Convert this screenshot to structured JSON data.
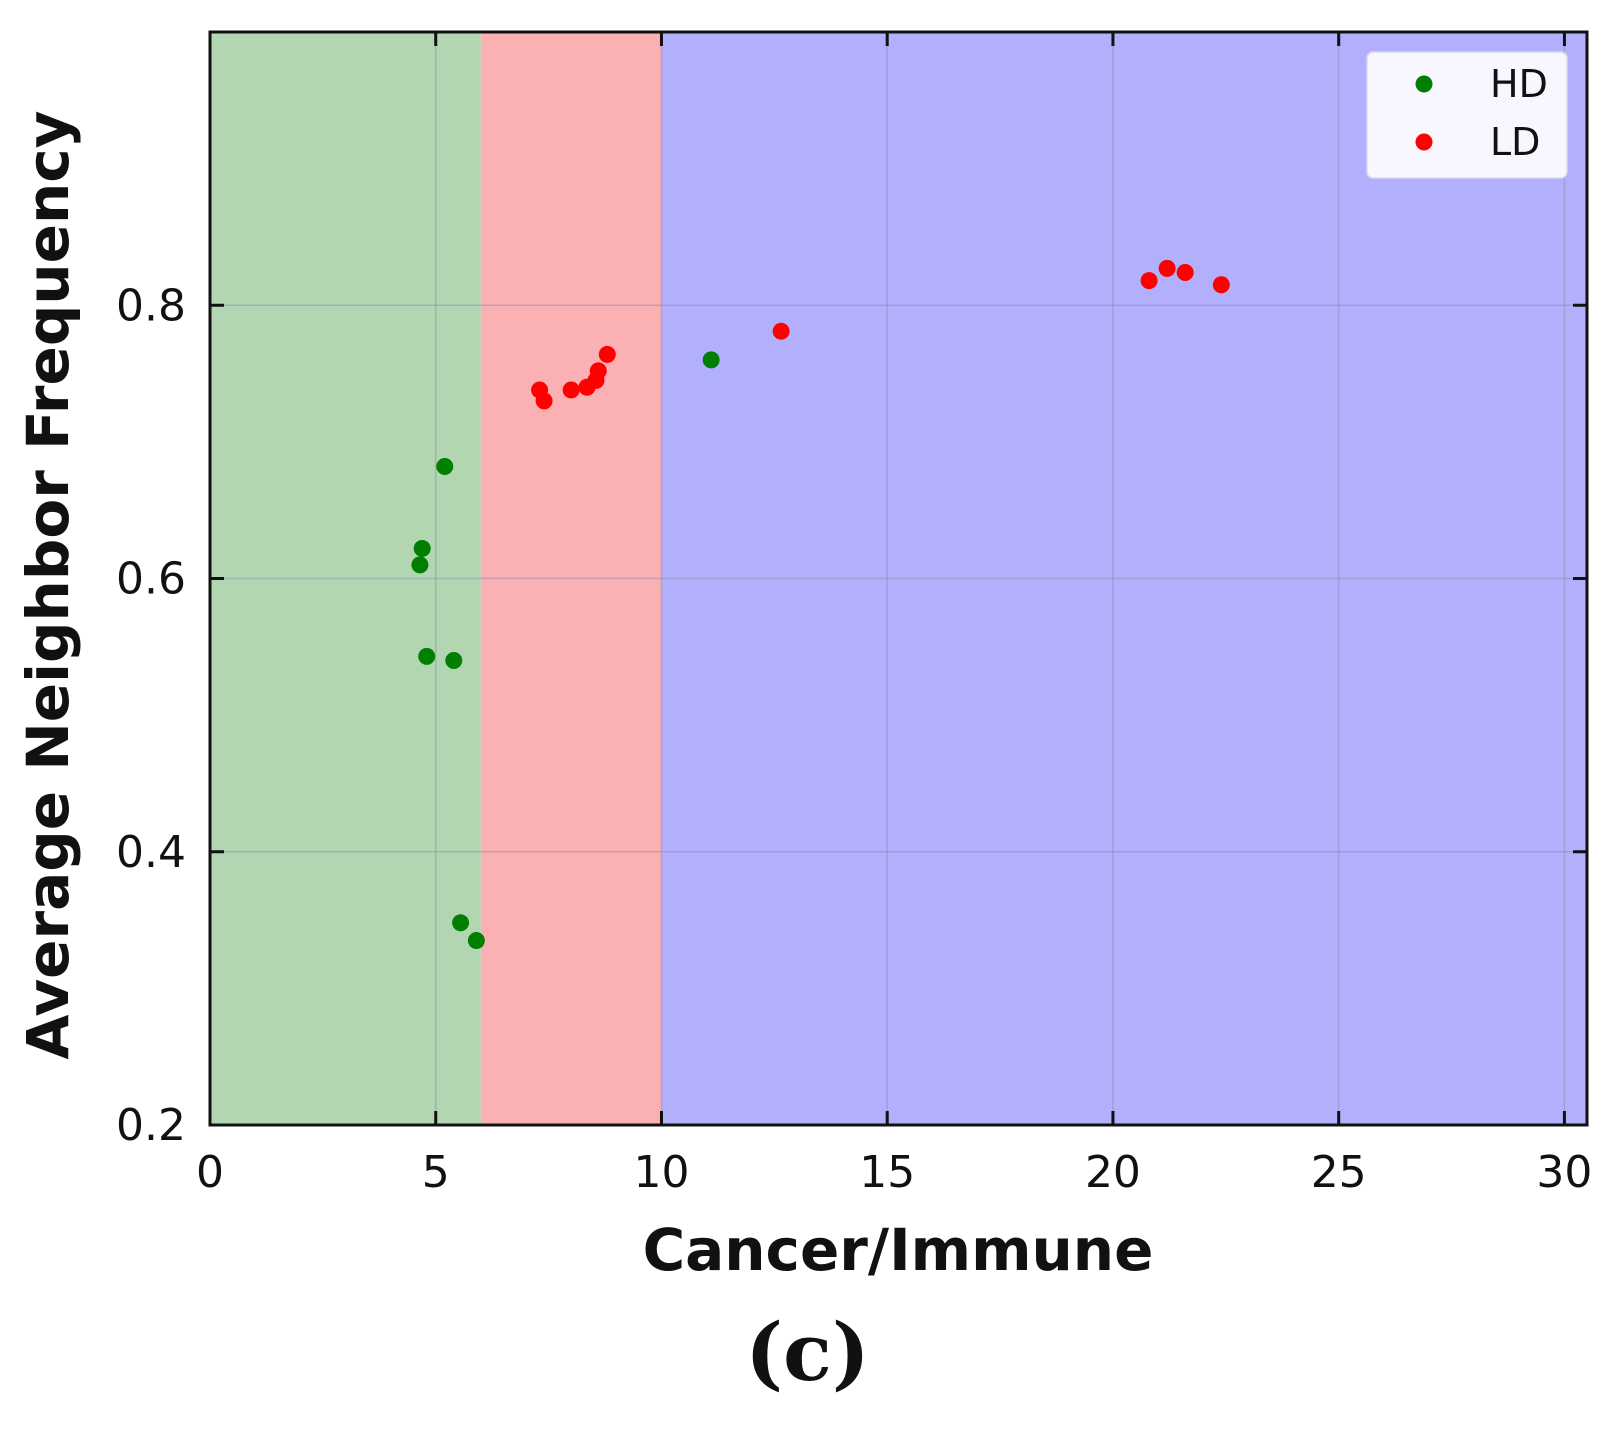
{
  "chart_data": {
    "type": "scatter",
    "title": "",
    "xlabel": "Cancer/Immune",
    "ylabel": "Average Neighbor Frequency",
    "xlim": [
      0,
      30.5
    ],
    "ylim": [
      0.2,
      1.0
    ],
    "xticks": [
      0,
      5,
      10,
      15,
      20,
      25,
      30
    ],
    "yticks": [
      0.2,
      0.4,
      0.6,
      0.8
    ],
    "xtick_labels": [
      "0",
      "5",
      "10",
      "15",
      "20",
      "25",
      "30"
    ],
    "ytick_labels": [
      "0.2",
      "0.4",
      "0.6",
      "0.8"
    ],
    "grid": true,
    "legend_position": "top-right",
    "regions": [
      {
        "name": "green-region",
        "x_range": [
          0,
          6
        ],
        "color": "#b2d6b2"
      },
      {
        "name": "red-region",
        "x_range": [
          6,
          10
        ],
        "color": "#fbb0b4"
      },
      {
        "name": "blue-region",
        "x_range": [
          10,
          30.5
        ],
        "color": "#b2b0fc"
      }
    ],
    "series": [
      {
        "name": "HD",
        "color": "#007f00",
        "points": [
          {
            "x": 5.2,
            "y": 0.682
          },
          {
            "x": 4.7,
            "y": 0.622
          },
          {
            "x": 4.65,
            "y": 0.61
          },
          {
            "x": 4.8,
            "y": 0.543
          },
          {
            "x": 5.4,
            "y": 0.54
          },
          {
            "x": 5.55,
            "y": 0.348
          },
          {
            "x": 5.9,
            "y": 0.335
          },
          {
            "x": 11.1,
            "y": 0.76
          }
        ]
      },
      {
        "name": "LD",
        "color": "#ff0000",
        "points": [
          {
            "x": 7.3,
            "y": 0.738
          },
          {
            "x": 7.4,
            "y": 0.73
          },
          {
            "x": 8.0,
            "y": 0.738
          },
          {
            "x": 8.35,
            "y": 0.74
          },
          {
            "x": 8.55,
            "y": 0.745
          },
          {
            "x": 8.6,
            "y": 0.752
          },
          {
            "x": 8.8,
            "y": 0.764
          },
          {
            "x": 12.65,
            "y": 0.781
          },
          {
            "x": 20.8,
            "y": 0.818
          },
          {
            "x": 21.2,
            "y": 0.827
          },
          {
            "x": 21.6,
            "y": 0.824
          },
          {
            "x": 22.4,
            "y": 0.815
          }
        ]
      }
    ]
  },
  "figure": {
    "panel_label": "(c)"
  }
}
